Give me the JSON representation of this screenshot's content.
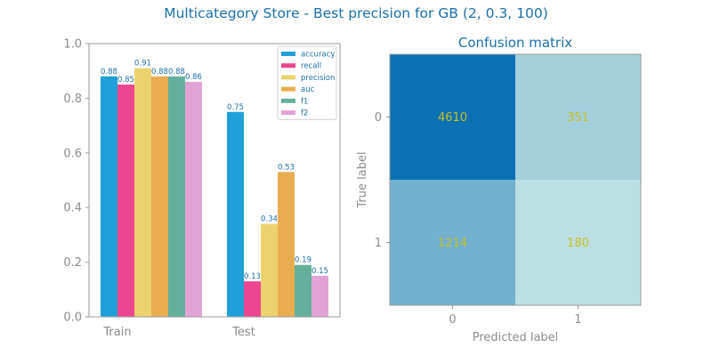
{
  "figure": {
    "suptitle": "Multicategory Store - Best precision for GB (2, 0.3, 100)"
  },
  "chart_data": [
    {
      "type": "bar",
      "title": "",
      "xlabel": "",
      "ylabel": "",
      "categories": [
        "Train",
        "Test"
      ],
      "ylim": [
        0,
        1
      ],
      "yticks": [
        "0.0",
        "0.2",
        "0.4",
        "0.6",
        "0.8",
        "1.0"
      ],
      "legend_position": "top-right",
      "series": [
        {
          "name": "accuracy",
          "color": "#1fa0d8",
          "values": [
            0.88,
            0.75
          ],
          "labels": [
            "0.88",
            "0.75"
          ]
        },
        {
          "name": "recall",
          "color": "#ec4691",
          "values": [
            0.85,
            0.13
          ],
          "labels": [
            "0.85",
            "0.13"
          ]
        },
        {
          "name": "precision",
          "color": "#ecd26f",
          "values": [
            0.91,
            0.34
          ],
          "labels": [
            "0.91",
            "0.34"
          ]
        },
        {
          "name": "auc",
          "color": "#e8ad4f",
          "values": [
            0.88,
            0.53
          ],
          "labels": [
            "0.88",
            "0.53"
          ]
        },
        {
          "name": "f1",
          "color": "#64b09c",
          "values": [
            0.88,
            0.19
          ],
          "labels": [
            "0.88",
            "0.19"
          ]
        },
        {
          "name": "f2",
          "color": "#e1a3d5",
          "values": [
            0.86,
            0.15
          ],
          "labels": [
            "0.86",
            "0.15"
          ]
        }
      ]
    },
    {
      "type": "heatmap",
      "title": "Confusion matrix",
      "xlabel": "Predicted label",
      "ylabel": "True label",
      "x_categories": [
        "0",
        "1"
      ],
      "y_categories": [
        "0",
        "1"
      ],
      "values": [
        [
          4610,
          351
        ],
        [
          1214,
          180
        ]
      ],
      "labels": [
        [
          "4610",
          "351"
        ],
        [
          "1214",
          "180"
        ]
      ],
      "colormap": {
        "low": "#bcdfe3",
        "high": "#0b70b4"
      }
    }
  ]
}
